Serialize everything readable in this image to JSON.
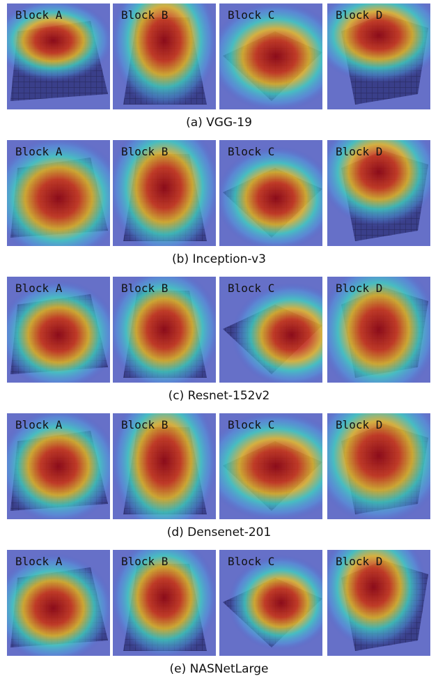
{
  "rows": [
    {
      "blocks": [
        "Block A",
        "Block B",
        "Block C",
        "Block D"
      ],
      "caption": "(a) VGG-19"
    },
    {
      "blocks": [
        "Block A",
        "Block B",
        "Block C",
        "Block D"
      ],
      "caption": "(b) Inception-v3"
    },
    {
      "blocks": [
        "Block A",
        "Block B",
        "Block C",
        "Block D"
      ],
      "caption": "(c) Resnet-152v2"
    },
    {
      "blocks": [
        "Block A",
        "Block B",
        "Block C",
        "Block D"
      ],
      "caption": "(d) Densenet-201"
    },
    {
      "blocks": [
        "Block A",
        "Block B",
        "Block C",
        "Block D"
      ],
      "caption": "(e) NASNetLarge"
    }
  ]
}
